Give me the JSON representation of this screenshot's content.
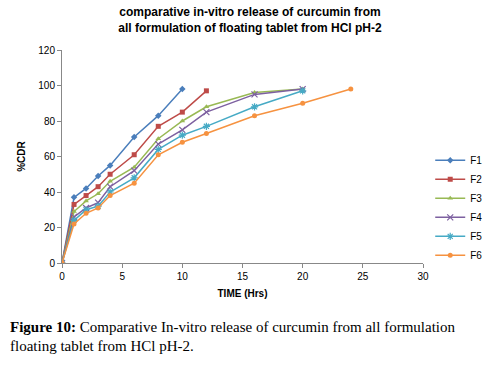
{
  "chart_data": {
    "type": "line",
    "title": "comparative in-vitro release of curcumin from all formulation of floating tablet from HCl pH-2",
    "caption": "Figure 10: Comparative In-vitro release of curcumin from all formulation floating tablet from HCl pH-2.",
    "x_label": "TIME (Hrs)",
    "y_label": "%CDR",
    "xlim": [
      0,
      30
    ],
    "xticks": [
      0,
      5,
      10,
      15,
      20,
      25,
      30
    ],
    "ylim": [
      0,
      120
    ],
    "yticks": [
      0,
      20,
      40,
      60,
      80,
      100,
      120
    ],
    "grid": false,
    "legend": "right",
    "series": [
      {
        "name": "F1",
        "color": "#4a7ebb",
        "marker": "diamond",
        "x": [
          0,
          1,
          2,
          3,
          4,
          6,
          8,
          10
        ],
        "values": [
          0,
          37,
          42,
          49,
          55,
          71,
          83,
          98
        ]
      },
      {
        "name": "F2",
        "color": "#be4b48",
        "marker": "square",
        "x": [
          0,
          1,
          2,
          3,
          4,
          6,
          8,
          10,
          12
        ],
        "values": [
          0,
          33,
          38,
          43,
          50,
          61,
          77,
          85,
          97
        ]
      },
      {
        "name": "F3",
        "color": "#98b954",
        "marker": "triangle",
        "x": [
          0,
          1,
          2,
          3,
          4,
          6,
          8,
          10,
          12,
          16,
          20
        ],
        "values": [
          0,
          29,
          35,
          39,
          46,
          54,
          70,
          80,
          88,
          96,
          98
        ]
      },
      {
        "name": "F4",
        "color": "#7d60a0",
        "marker": "x",
        "x": [
          0,
          1,
          2,
          3,
          4,
          6,
          8,
          10,
          12,
          16,
          20
        ],
        "values": [
          0,
          26,
          31,
          34,
          43,
          52,
          67,
          75,
          85,
          95,
          98
        ]
      },
      {
        "name": "F5",
        "color": "#46aac5",
        "marker": "star",
        "x": [
          0,
          1,
          2,
          3,
          4,
          6,
          8,
          10,
          12,
          16,
          20
        ],
        "values": [
          0,
          24,
          30,
          32,
          40,
          48,
          64,
          72,
          77,
          88,
          97
        ]
      },
      {
        "name": "F6",
        "color": "#f69240",
        "marker": "circle",
        "x": [
          0,
          1,
          2,
          3,
          4,
          6,
          8,
          10,
          12,
          16,
          20,
          24
        ],
        "values": [
          0,
          22,
          28,
          31,
          38,
          45,
          61,
          68,
          73,
          83,
          90,
          98
        ]
      }
    ]
  }
}
